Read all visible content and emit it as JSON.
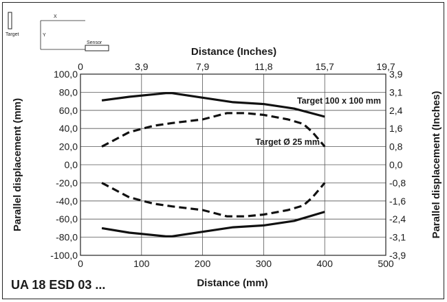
{
  "chart_data": {
    "type": "line",
    "model_label": "UA 18 ESD 03 ...",
    "xlabel": "Distance (mm)",
    "x2label": "Distance (Inches)",
    "ylabel": "Parallel displacement (mm)",
    "y2label": "Parallel displacement (Inches)",
    "xlim": [
      0,
      500
    ],
    "ylim": [
      -100,
      100
    ],
    "x_ticks": [
      0,
      100,
      200,
      300,
      400,
      500
    ],
    "x_tick_labels": [
      "0",
      "100",
      "200",
      "300",
      "400",
      "500"
    ],
    "x2_tick_labels": [
      "0",
      "3,9",
      "7,9",
      "11,8",
      "15,7",
      "19,7"
    ],
    "y_ticks": [
      100,
      80,
      60,
      40,
      20,
      0,
      -20,
      -40,
      -60,
      -80,
      -100
    ],
    "y_tick_labels": [
      "100,0",
      "80,0",
      "60,0",
      "40,0",
      "20,0",
      "0,0",
      "-20,0",
      "-40,0",
      "-60,0",
      "-80,0",
      "-100,0"
    ],
    "y2_tick_labels": [
      "3,9",
      "3,1",
      "2,4",
      "1,6",
      "0,8",
      "0,0",
      "-0,8",
      "-1,6",
      "-2,4",
      "-3,1",
      "-3,9"
    ],
    "grid": true,
    "series": [
      {
        "name": "Target 100 x 100 mm",
        "style": "solid",
        "upper": [
          [
            35,
            71
          ],
          [
            80,
            75
          ],
          [
            140,
            79
          ],
          [
            150,
            79
          ],
          [
            200,
            74
          ],
          [
            250,
            69
          ],
          [
            300,
            67
          ],
          [
            350,
            62
          ],
          [
            400,
            53
          ]
        ],
        "lower": [
          [
            35,
            -70
          ],
          [
            80,
            -75
          ],
          [
            140,
            -79
          ],
          [
            150,
            -79
          ],
          [
            200,
            -74
          ],
          [
            250,
            -69
          ],
          [
            300,
            -67
          ],
          [
            350,
            -62
          ],
          [
            400,
            -52
          ]
        ]
      },
      {
        "name": "Target Ø 25 mm",
        "style": "dashed",
        "upper": [
          [
            35,
            20
          ],
          [
            80,
            36
          ],
          [
            120,
            43
          ],
          [
            150,
            46
          ],
          [
            200,
            50
          ],
          [
            240,
            57
          ],
          [
            270,
            57
          ],
          [
            300,
            55
          ],
          [
            340,
            50
          ],
          [
            365,
            45
          ],
          [
            380,
            36
          ],
          [
            400,
            20
          ]
        ],
        "lower": [
          [
            35,
            -20
          ],
          [
            80,
            -36
          ],
          [
            120,
            -43
          ],
          [
            150,
            -46
          ],
          [
            200,
            -50
          ],
          [
            240,
            -57
          ],
          [
            270,
            -57
          ],
          [
            300,
            -55
          ],
          [
            340,
            -50
          ],
          [
            365,
            -45
          ],
          [
            380,
            -36
          ],
          [
            400,
            -20
          ]
        ]
      }
    ],
    "colors": {
      "line": "#111111",
      "grid": "#555555"
    }
  },
  "inset": {
    "x_label": "X",
    "y_label": "Y",
    "target_label": "Target",
    "sensor_label": "Sensor"
  }
}
